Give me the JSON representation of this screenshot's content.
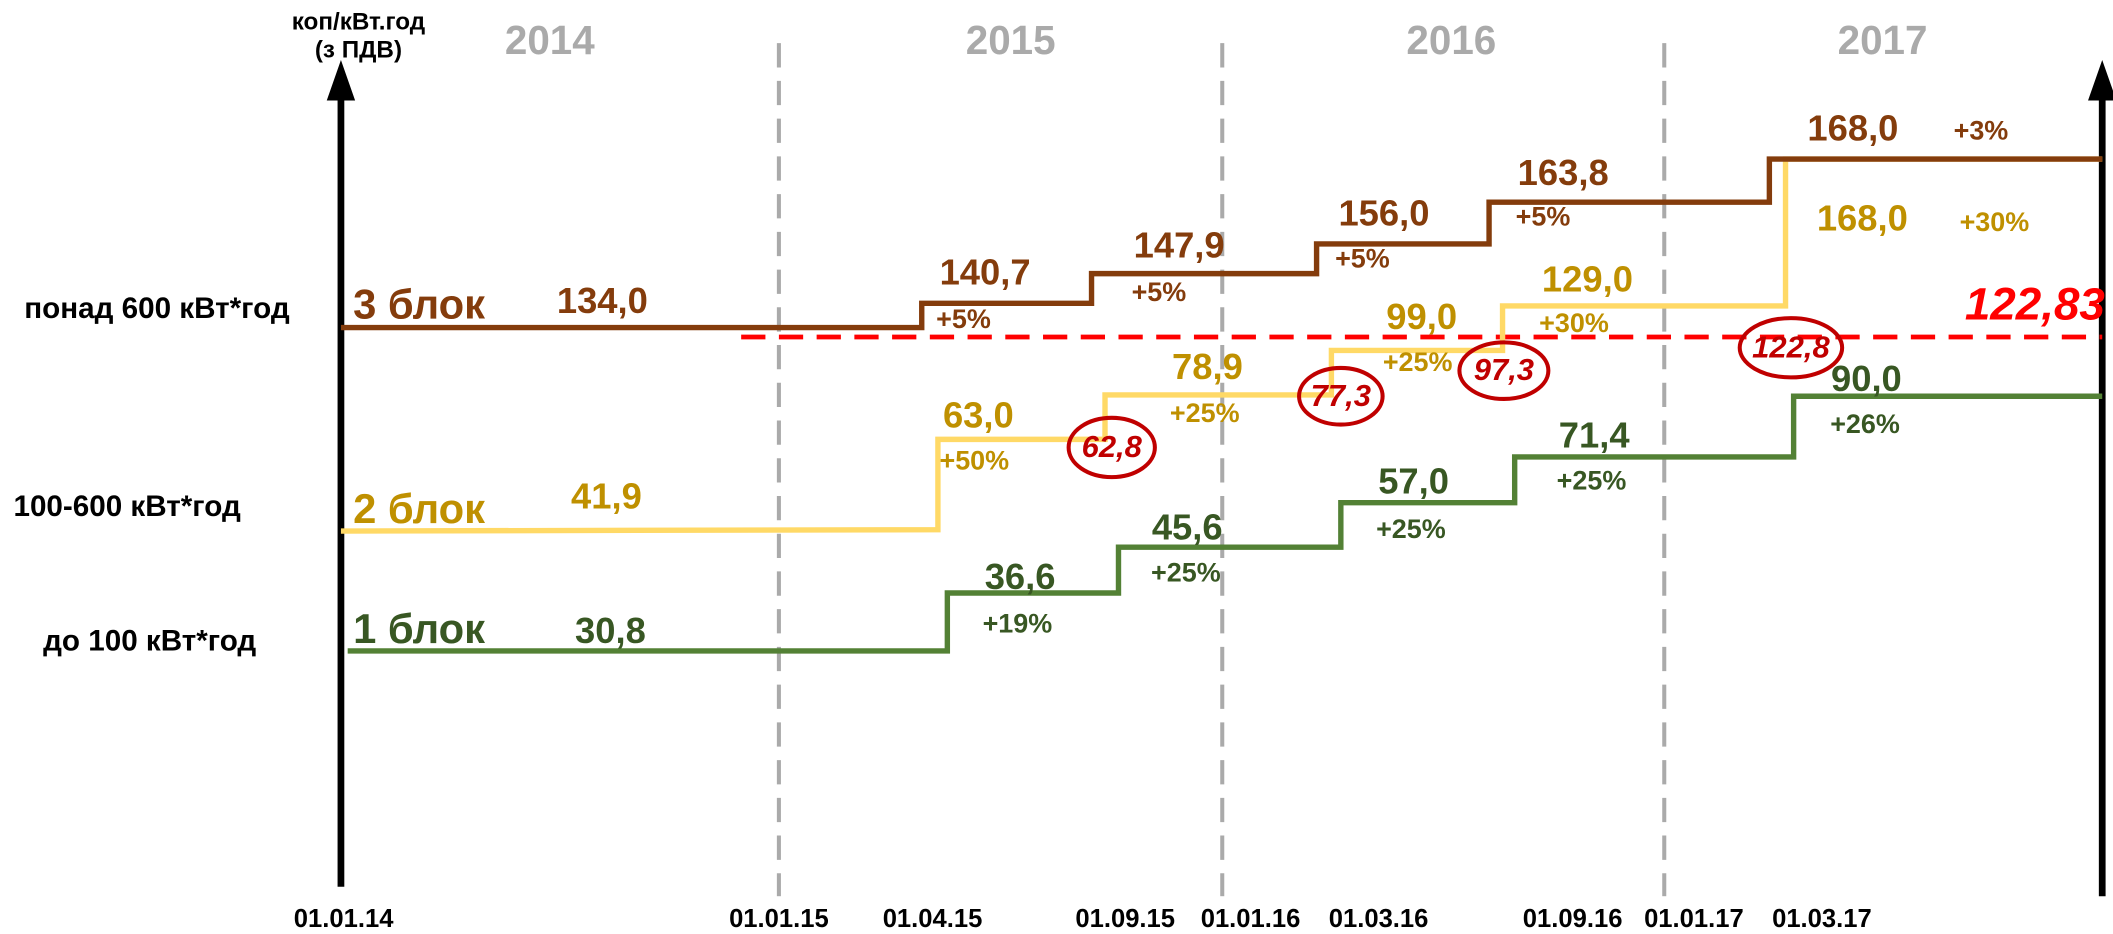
{
  "y_axis_label": [
    "коп/кВт.год",
    "(з ПДВ)"
  ],
  "years": [
    "2014",
    "2015",
    "2016",
    "2017"
  ],
  "dates": [
    "01.01.14",
    "01.01.15",
    "01.04.15",
    "01.09.15",
    "01.01.16",
    "01.03.16",
    "01.09.16",
    "01.01.17",
    "01.03.17"
  ],
  "blocks": [
    {
      "name": "до 100 кВт*год",
      "label": "1 блок",
      "line_color": "#538135",
      "text_color": "#385723",
      "steps": [
        {
          "value": "30,8"
        },
        {
          "value": "36,6",
          "change": "+19%"
        },
        {
          "value": "45,6",
          "change": "+25%"
        },
        {
          "value": "57,0",
          "change": "+25%"
        },
        {
          "value": "71,4",
          "change": "+25%"
        },
        {
          "value": "90,0",
          "change": "+26%"
        }
      ]
    },
    {
      "name": "100-600 кВт*год",
      "label": "2 блок",
      "line_color": "#ffd966",
      "text_color": "#bf9000",
      "steps": [
        {
          "value": "41,9"
        },
        {
          "value": "63,0",
          "change": "+50%"
        },
        {
          "value": "78,9",
          "change": "+25%"
        },
        {
          "value": "99,0",
          "change": "+25%"
        },
        {
          "value": "129,0",
          "change": "+30%"
        },
        {
          "value": "168,0",
          "change": "+30%"
        }
      ]
    },
    {
      "name": "понад 600 кВт*год",
      "label": "3 блок",
      "line_color": "#843c0c",
      "text_color": "#843c0c",
      "steps": [
        {
          "value": "134,0"
        },
        {
          "value": "140,7",
          "change": "+5%"
        },
        {
          "value": "147,9",
          "change": "+5%"
        },
        {
          "value": "156,0",
          "change": "+5%"
        },
        {
          "value": "163,8",
          "change": "+5%"
        },
        {
          "value": "168,0",
          "change": "+3%"
        }
      ]
    }
  ],
  "threshold": "122,83",
  "markers": [
    "62,8",
    "77,3",
    "97,3",
    "122,8"
  ]
}
